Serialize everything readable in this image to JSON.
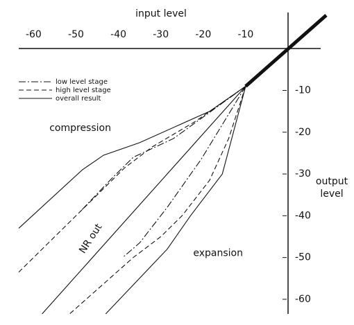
{
  "chart_data": {
    "type": "line",
    "title": "input level",
    "y_label_lines": [
      "output",
      "level"
    ],
    "xlim": [
      -63.5,
      9
    ],
    "ylim": [
      -63.5,
      8
    ],
    "xticks": [
      -60,
      -50,
      -40,
      -30,
      -20,
      -10
    ],
    "yticks": [
      -10,
      -20,
      -30,
      -40,
      -50,
      -60
    ],
    "color": "#111111",
    "series": [
      {
        "name": "low level stage",
        "dash": "dash-dot",
        "x": [
          -10,
          -27,
          -36.5,
          -41.5,
          -49,
          null,
          -10,
          -20.5,
          -28.5,
          -35,
          -39
        ],
        "values": [
          -9,
          -21.5,
          -26,
          -31,
          -39,
          null,
          -9,
          -26.5,
          -38,
          -46.5,
          -50
        ]
      },
      {
        "name": "high level stage",
        "dash": "dashed",
        "x": [
          -10,
          -22,
          -32,
          -38.5,
          -46.5,
          -63.5,
          null,
          -10,
          -14,
          -18.5,
          -25,
          -30,
          -36.5,
          -51.5
        ],
        "values": [
          -9,
          -17.5,
          -23.5,
          -28.5,
          -36.5,
          -53.5,
          null,
          -9,
          -21.5,
          -31.5,
          -40,
          -45,
          -50,
          -63.5
        ]
      },
      {
        "name": "overall result",
        "dash": "solid",
        "x": [
          -10,
          -18.5,
          -35,
          -43.5,
          -48.5,
          -63.5,
          null,
          -10,
          -15.5,
          -23,
          -28.5,
          -43
        ],
        "values": [
          -9,
          -15,
          -22.5,
          -25.5,
          -29,
          -43,
          null,
          -9,
          -30,
          -40,
          -48,
          -63.5
        ]
      },
      {
        "dash": "solid",
        "x": [
          -10,
          -58
        ],
        "values": [
          -9,
          -63.5
        ]
      },
      {
        "dash": "thick",
        "x": [
          -10,
          9
        ],
        "values": [
          -9,
          8
        ]
      }
    ],
    "annotations": [
      {
        "text": "compression",
        "x": -49,
        "y": -19
      },
      {
        "text": "expansion",
        "x": -16.5,
        "y": -49
      },
      {
        "text": "NR out",
        "x": -46.5,
        "y": -45.5,
        "angle": -57
      }
    ]
  }
}
